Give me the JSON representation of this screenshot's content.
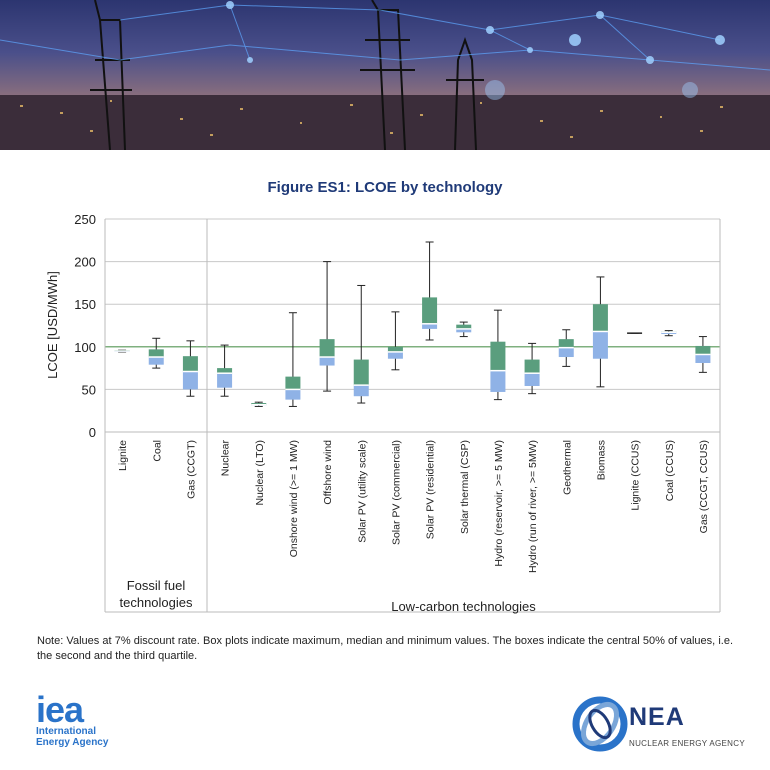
{
  "chart_data": {
    "type": "boxplot",
    "title": "Figure ES1: LCOE by technology",
    "ylabel": "LCOE [USD/MWh]",
    "ylim": [
      0,
      250
    ],
    "yticks": [
      0,
      50,
      100,
      150,
      200,
      250
    ],
    "grid": true,
    "legend": "none",
    "box_colors": {
      "upper": "#5a9e7e",
      "lower": "#8fb2e6",
      "median": "#ffffff"
    },
    "groups": [
      {
        "label": [
          "Fossil fuel",
          "technologies"
        ],
        "start": 0,
        "end": 2
      },
      {
        "label": [
          "Low-carbon technologies"
        ],
        "start": 3,
        "end": 18
      }
    ],
    "categories": [
      "Lignite",
      "Coal",
      "Gas (CCGT)",
      "Nuclear",
      "Nuclear (LTO)",
      "Onshore wind (>= 1 MW)",
      "Offshore wind",
      "Solar PV (utility scale)",
      "Solar PV (commercial)",
      "Solar PV (residential)",
      "Solar thermal (CSP)",
      "Hydro (reservoir, >= 5 MW)",
      "Hydro (run of river, >= 5MW)",
      "Geothermal",
      "Biomass",
      "Lignite (CCUS)",
      "Coal (CCUS)",
      "Gas (CCGT, CCUS)"
    ],
    "series": [
      {
        "name": "Lignite",
        "min": 94,
        "q1": 94,
        "median": 95,
        "q3": 96,
        "max": 96
      },
      {
        "name": "Coal",
        "min": 75,
        "q1": 79,
        "median": 88,
        "q3": 97,
        "max": 110
      },
      {
        "name": "Gas (CCGT)",
        "min": 42,
        "q1": 50,
        "median": 71,
        "q3": 89,
        "max": 107
      },
      {
        "name": "Nuclear",
        "min": 42,
        "q1": 52,
        "median": 69,
        "q3": 75,
        "max": 102
      },
      {
        "name": "Nuclear (LTO)",
        "min": 30,
        "q1": 31,
        "median": 32,
        "q3": 34,
        "max": 35
      },
      {
        "name": "Onshore wind (>= 1 MW)",
        "min": 30,
        "q1": 38,
        "median": 50,
        "q3": 65,
        "max": 140
      },
      {
        "name": "Offshore wind",
        "min": 48,
        "q1": 78,
        "median": 88,
        "q3": 109,
        "max": 200
      },
      {
        "name": "Solar PV (utility scale)",
        "min": 34,
        "q1": 42,
        "median": 55,
        "q3": 85,
        "max": 172
      },
      {
        "name": "Solar PV (commercial)",
        "min": 73,
        "q1": 86,
        "median": 94,
        "q3": 100,
        "max": 141
      },
      {
        "name": "Solar PV (residential)",
        "min": 108,
        "q1": 121,
        "median": 127,
        "q3": 158,
        "max": 223
      },
      {
        "name": "Solar thermal (CSP)",
        "min": 112,
        "q1": 117,
        "median": 121,
        "q3": 126,
        "max": 129
      },
      {
        "name": "Hydro (reservoir, >= 5 MW)",
        "min": 38,
        "q1": 47,
        "median": 72,
        "q3": 106,
        "max": 143
      },
      {
        "name": "Hydro (run of river, >= 5MW)",
        "min": 45,
        "q1": 54,
        "median": 69,
        "q3": 85,
        "max": 104
      },
      {
        "name": "Geothermal",
        "min": 77,
        "q1": 88,
        "median": 99,
        "q3": 109,
        "max": 120
      },
      {
        "name": "Biomass",
        "min": 53,
        "q1": 86,
        "median": 118,
        "q3": 150,
        "max": 182
      },
      {
        "name": "Lignite (CCUS)",
        "min": 116,
        "q1": 116,
        "median": 116,
        "q3": 116,
        "max": 116
      },
      {
        "name": "Coal (CCUS)",
        "min": 113,
        "q1": 115,
        "median": 117,
        "q3": 118,
        "max": 119
      },
      {
        "name": "Gas (CCGT, CCUS)",
        "min": 70,
        "q1": 81,
        "median": 91,
        "q3": 101,
        "max": 112
      }
    ]
  },
  "note": "Note: Values at 7% discount rate. Box plots indicate maximum, median and minimum values. The boxes indicate the central 50% of values, i.e. the second and the third quartile.",
  "logos": {
    "iea": {
      "wordmark": "iea",
      "line1": "International",
      "line2": "Energy Agency"
    },
    "nea": {
      "wordmark": "NEA",
      "subtitle": "NUCLEAR ENERGY AGENCY"
    }
  }
}
